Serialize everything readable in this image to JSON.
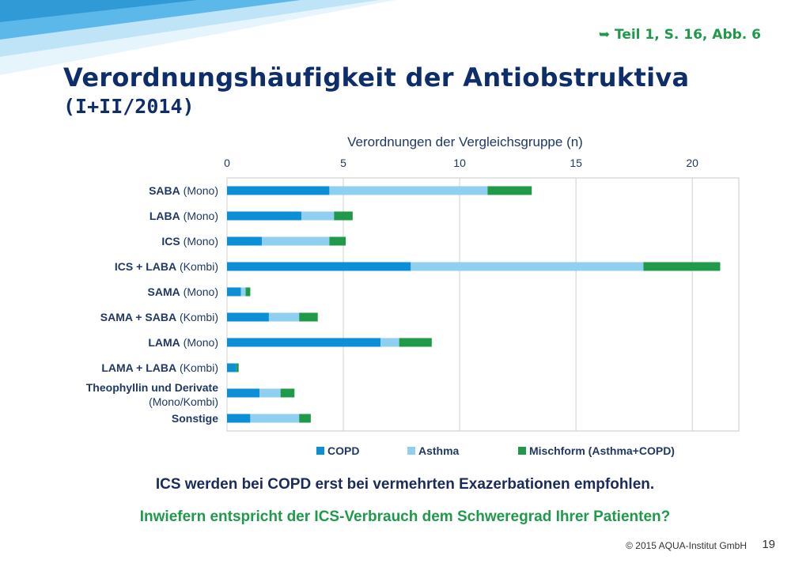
{
  "slide": {
    "reference": "➥ Teil  1, S. 16, Abb. 6",
    "title": "Verordnungshäufigkeit der Antiobstruktiva",
    "subtitle": "(I+II/2014)",
    "footer_line1": "ICS werden bei COPD erst bei vermehrten Exazerbationen empfohlen.",
    "footer_line2": "Inwiefern entspricht der ICS-Verbrauch dem Schweregrad Ihrer Patienten?",
    "copyright": "© 2015 AQUA-Institut GmbH",
    "page_number": "19"
  },
  "colors": {
    "copd": "#0b8fd6",
    "asthma": "#8fd0f0",
    "mischform": "#1f9a4a",
    "title": "#0d2d6b",
    "green_text": "#1f9a4a"
  },
  "chart_data": {
    "type": "bar",
    "orientation": "horizontal",
    "stacked": true,
    "xlabel": "Verordnungen der Vergleichsgruppe (n)",
    "xlim": [
      0,
      22
    ],
    "xticks": [
      0,
      5,
      10,
      15,
      20
    ],
    "grid": true,
    "legend_position": "bottom",
    "categories": [
      {
        "bold": "SABA",
        "normal": " (Mono)"
      },
      {
        "bold": "LABA",
        "normal": " (Mono)"
      },
      {
        "bold": "ICS",
        "normal": " (Mono)"
      },
      {
        "bold": "ICS + LABA",
        "normal": " (Kombi)"
      },
      {
        "bold": "SAMA",
        "normal": " (Mono)"
      },
      {
        "bold": "SAMA + SABA",
        "normal": " (Kombi)"
      },
      {
        "bold": "LAMA",
        "normal": " (Mono)"
      },
      {
        "bold": "LAMA + LABA",
        "normal": " (Kombi)"
      },
      {
        "bold": "Theophyllin und Derivate",
        "normal": "",
        "line2": "(Mono/Kombi)"
      },
      {
        "bold": "Sonstige",
        "normal": ""
      }
    ],
    "series": [
      {
        "name": "COPD",
        "key": "copd",
        "values": [
          4.4,
          3.2,
          1.5,
          7.9,
          0.6,
          1.8,
          6.6,
          0.4,
          1.4,
          1.0
        ]
      },
      {
        "name": "Asthma",
        "key": "asthma",
        "values": [
          6.8,
          1.4,
          2.9,
          10.0,
          0.2,
          1.3,
          0.8,
          0.0,
          0.9,
          2.1
        ]
      },
      {
        "name": "Mischform (Asthma+COPD)",
        "key": "mischform",
        "values": [
          1.9,
          0.8,
          0.7,
          3.3,
          0.2,
          0.8,
          1.4,
          0.1,
          0.6,
          0.5
        ]
      }
    ]
  }
}
